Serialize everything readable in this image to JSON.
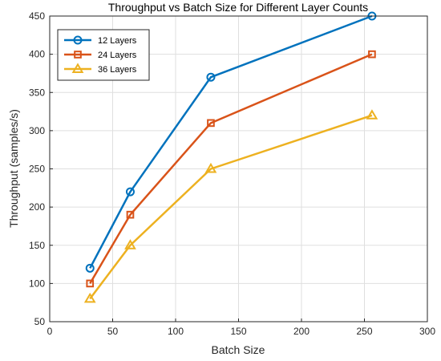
{
  "chart_data": {
    "type": "line",
    "title": "Throughput vs Batch Size for Different Layer Counts",
    "xlabel": "Batch Size",
    "ylabel": "Throughput (samples/s)",
    "xlim": [
      0,
      300
    ],
    "ylim": [
      50,
      450
    ],
    "xticks": [
      0,
      50,
      100,
      150,
      200,
      250,
      300
    ],
    "yticks": [
      50,
      100,
      150,
      200,
      250,
      300,
      350,
      400,
      450
    ],
    "grid": true,
    "legend_position": "top-left",
    "x": [
      32,
      64,
      128,
      256
    ],
    "series": [
      {
        "name": "12 Layers",
        "values": [
          120,
          220,
          370,
          450
        ],
        "color": "#0072BD",
        "marker": "circle"
      },
      {
        "name": "24 Layers",
        "values": [
          100,
          190,
          310,
          400
        ],
        "color": "#D95319",
        "marker": "square"
      },
      {
        "name": "36 Layers",
        "values": [
          80,
          150,
          250,
          320
        ],
        "color": "#EDB120",
        "marker": "triangle"
      }
    ]
  }
}
